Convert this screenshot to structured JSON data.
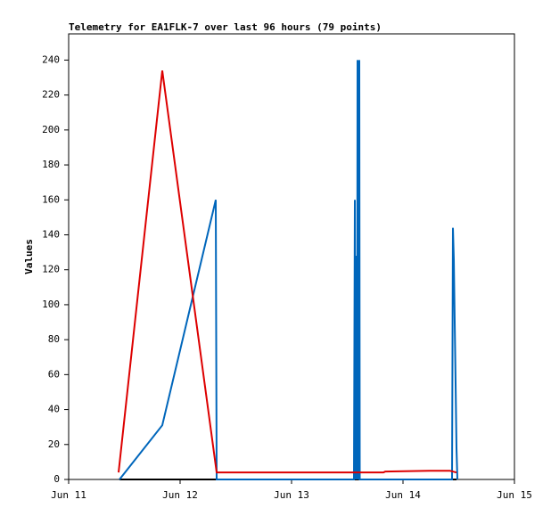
{
  "chart_data": {
    "type": "line",
    "title": "Telemetry for EA1FLK-7 over last 96 hours (79 points)",
    "y_label": "Values",
    "xlim": [
      0,
      4
    ],
    "xticks": [
      {
        "value": 0,
        "label": "Jun 11"
      },
      {
        "value": 1,
        "label": "Jun 12"
      },
      {
        "value": 2,
        "label": "Jun 13"
      },
      {
        "value": 3,
        "label": "Jun 14"
      },
      {
        "value": 4,
        "label": "Jun 15"
      }
    ],
    "ylim": [
      0,
      255
    ],
    "yticks": [
      0,
      20,
      40,
      60,
      80,
      100,
      120,
      140,
      160,
      180,
      200,
      220,
      240
    ],
    "grid": false,
    "series": [
      {
        "color": "#000000",
        "x": [
          0.456,
          3.48
        ],
        "values": [
          0,
          0
        ]
      },
      {
        "color": "#0066bb",
        "x": [
          0.456,
          0.84,
          1.32,
          1.328,
          2.56,
          2.568,
          2.572,
          2.576,
          2.58,
          2.584,
          2.588,
          2.592,
          2.596,
          2.6,
          2.608,
          2.612,
          3.44,
          3.448,
          3.456,
          3.464,
          3.472,
          3.48,
          3.488
        ],
        "values": [
          0,
          31,
          160,
          0,
          0,
          160,
          0,
          128,
          0,
          32,
          0,
          240,
          32,
          0,
          240,
          0,
          0,
          144,
          126,
          90,
          55,
          18,
          0
        ]
      },
      {
        "color": "#dd0000",
        "x": [
          0.448,
          0.84,
          1.328,
          2.824,
          2.84,
          3.24,
          3.42,
          3.48
        ],
        "values": [
          4,
          234,
          4,
          4,
          4.5,
          5,
          5,
          4
        ]
      }
    ]
  }
}
